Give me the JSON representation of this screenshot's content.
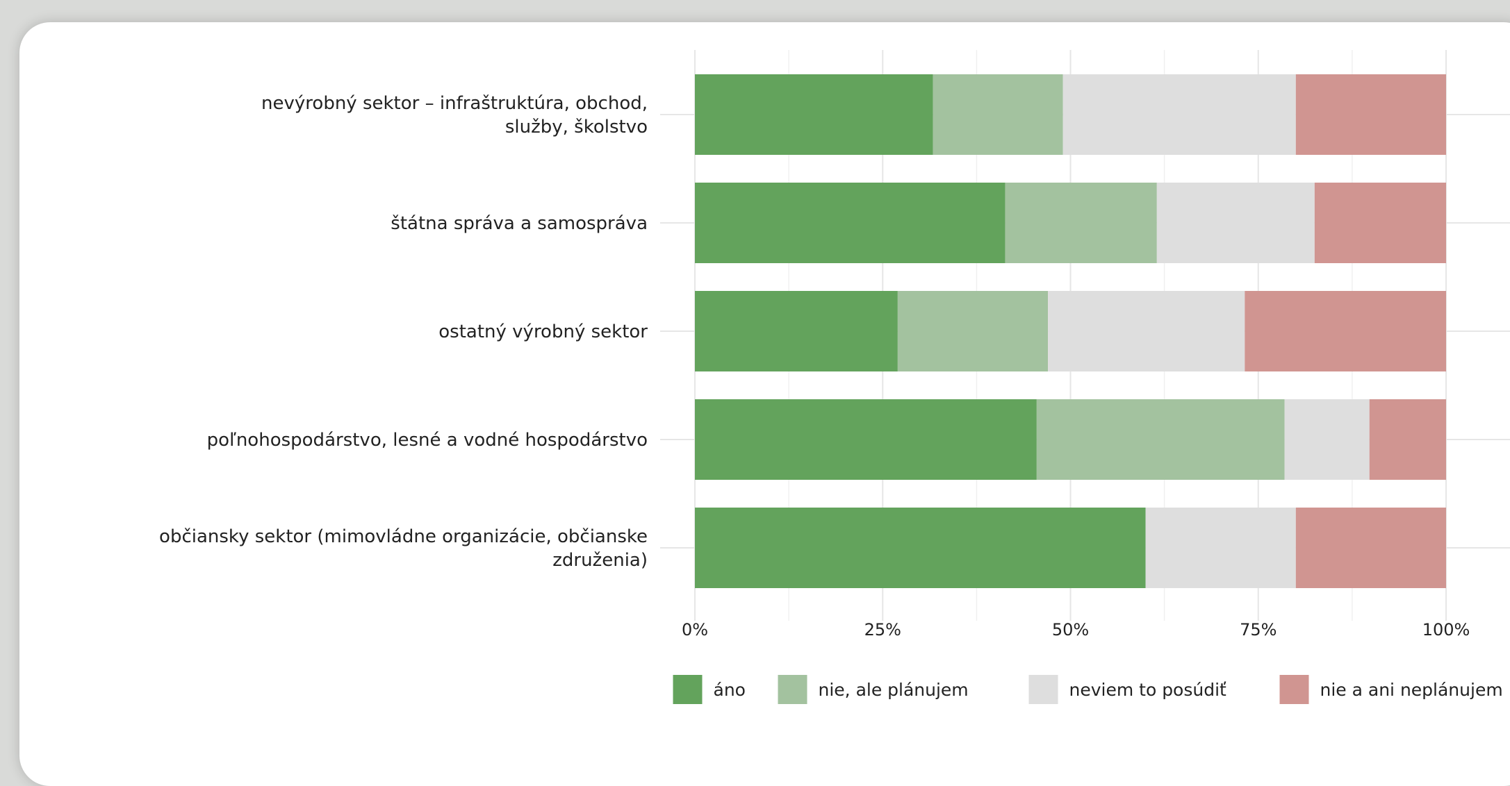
{
  "chart_data": {
    "type": "bar",
    "orientation": "horizontal",
    "stacked": true,
    "percent": true,
    "title": "",
    "xlabel": "",
    "ylabel": "",
    "xlim": [
      0,
      1
    ],
    "grid": true,
    "legend_position": "bottom",
    "categories": [
      [
        "nevýrobný sektor – infraštruktúra, obchod,",
        "služby, školstvo"
      ],
      [
        "štátna správa a samospráva"
      ],
      [
        "ostatný výrobný sektor"
      ],
      [
        "poľnohospodárstvo, lesné a vodné hospodárstvo"
      ],
      [
        "občiansky sektor (mimovládne organizácie, občianske",
        "združenia)"
      ]
    ],
    "ticks": [
      {
        "value": 0,
        "label": "0%"
      },
      {
        "value": 0.25,
        "label": "25%"
      },
      {
        "value": 0.5,
        "label": "50%"
      },
      {
        "value": 0.75,
        "label": "75%"
      },
      {
        "value": 1,
        "label": "100%"
      }
    ],
    "series": [
      {
        "name": "áno",
        "color": "#63a35c",
        "values": [
          0.317,
          0.413,
          0.27,
          0.455,
          0.6
        ]
      },
      {
        "name": "nie, ale plánujem",
        "color": "#a3c29f",
        "values": [
          0.173,
          0.202,
          0.2,
          0.33,
          0.0
        ]
      },
      {
        "name": "neviem to posúdiť",
        "color": "#dedede",
        "values": [
          0.31,
          0.21,
          0.262,
          0.113,
          0.2
        ]
      },
      {
        "name": "nie a ani neplánujem",
        "color": "#d09591",
        "values": [
          0.2,
          0.175,
          0.268,
          0.102,
          0.2
        ]
      }
    ]
  }
}
